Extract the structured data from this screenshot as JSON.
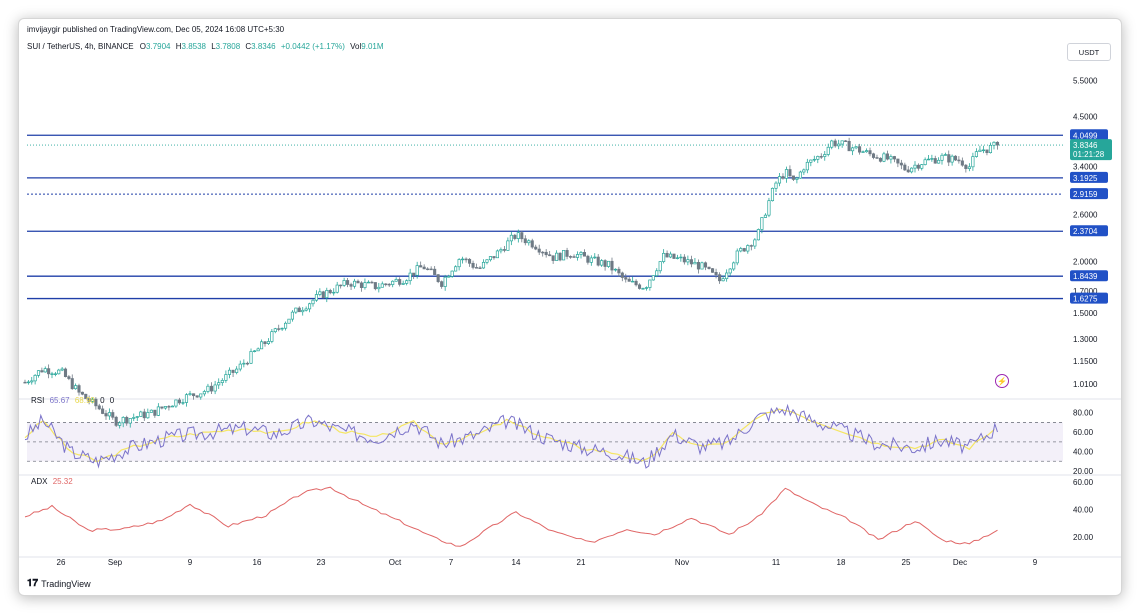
{
  "publish_line": "imvijaygir published on TradingView.com, Dec 05, 2024 16:08 UTC+5:30",
  "symbol": {
    "name": "SUI / TetherUS, 4h, BINANCE",
    "o_label": "O",
    "o": "3.7904",
    "h_label": "H",
    "h": "3.8538",
    "l_label": "L",
    "l": "3.7808",
    "c_label": "C",
    "c": "3.8346",
    "change": "+0.0442 (+1.17%)",
    "vol_label": "Vol",
    "vol": "9.01M"
  },
  "currency_button": "USDT",
  "logo_text": "TradingView",
  "colors": {
    "up": "#26a69a",
    "down": "#6f7a85",
    "level_line": "#1f3fa8",
    "tag_bg": "#2151c6",
    "last_price_bg": "#26a69a",
    "rsi_line": "#7b73c9",
    "rsi_ma": "#f5e663",
    "adx_line": "#e06666",
    "bolt": "#9c27b0"
  },
  "chart_data": [
    {
      "type": "candlestick",
      "title": "SUI / TetherUS, 4h, BINANCE",
      "x_tick_labels": [
        "26",
        "Sep",
        "9",
        "16",
        "23",
        "Oct",
        "7",
        "14",
        "21",
        "Nov",
        "11",
        "18",
        "25",
        "Dec",
        "9"
      ],
      "y_tick_labels": [
        "5.5000",
        "4.5000",
        "3.4000",
        "2.6000",
        "2.0000",
        "1.7000",
        "1.5000",
        "1.3000",
        "1.1500",
        "1.0100"
      ],
      "ylim": [
        0.95,
        6.2
      ],
      "scale": "log",
      "price_trace": [
        [
          "Aug 22",
          1.02
        ],
        [
          "Aug 24",
          1.1
        ],
        [
          "Aug 26",
          1.08
        ],
        [
          "Aug 28",
          0.96
        ],
        [
          "Sep 1",
          0.82
        ],
        [
          "Sep 5",
          0.86
        ],
        [
          "Sep 8",
          0.93
        ],
        [
          "Sep 11",
          0.98
        ],
        [
          "Sep 14",
          1.1
        ],
        [
          "Sep 17",
          1.28
        ],
        [
          "Sep 20",
          1.5
        ],
        [
          "Sep 23",
          1.66
        ],
        [
          "Sep 26",
          1.78
        ],
        [
          "Sep 29",
          1.74
        ],
        [
          "Oct 2",
          1.82
        ],
        [
          "Oct 4",
          1.95
        ],
        [
          "Oct 6",
          1.78
        ],
        [
          "Oct 8",
          2.05
        ],
        [
          "Oct 10",
          1.92
        ],
        [
          "Oct 12",
          2.1
        ],
        [
          "Oct 14",
          2.32
        ],
        [
          "Oct 16",
          2.2
        ],
        [
          "Oct 18",
          2.05
        ],
        [
          "Oct 20",
          2.1
        ],
        [
          "Oct 22",
          2.02
        ],
        [
          "Oct 24",
          1.96
        ],
        [
          "Oct 26",
          1.78
        ],
        [
          "Oct 28",
          1.74
        ],
        [
          "Oct 30",
          2.06
        ],
        [
          "Nov 1",
          2.02
        ],
        [
          "Nov 3",
          1.95
        ],
        [
          "Nov 5",
          1.8
        ],
        [
          "Nov 7",
          2.1
        ],
        [
          "Nov 9",
          2.3
        ],
        [
          "Nov 10",
          2.7
        ],
        [
          "Nov 11",
          3.1
        ],
        [
          "Nov 12",
          3.3
        ],
        [
          "Nov 13",
          3.1
        ],
        [
          "Nov 14",
          3.4
        ],
        [
          "Nov 16",
          3.65
        ],
        [
          "Nov 17",
          3.9
        ],
        [
          "Nov 19",
          3.8
        ],
        [
          "Nov 21",
          3.65
        ],
        [
          "Nov 23",
          3.55
        ],
        [
          "Nov 25",
          3.35
        ],
        [
          "Nov 27",
          3.5
        ],
        [
          "Nov 29",
          3.58
        ],
        [
          "Dec 1",
          3.52
        ],
        [
          "Dec 2",
          3.4
        ],
        [
          "Dec 3",
          3.72
        ],
        [
          "Dec 4",
          3.76
        ],
        [
          "Dec 5",
          3.8346
        ]
      ],
      "horizontal_levels": [
        {
          "value": 4.0499,
          "style": "solid",
          "label": "4.0499"
        },
        {
          "value": 3.1925,
          "style": "solid",
          "label": "3.1925"
        },
        {
          "value": 2.9159,
          "style": "dotted",
          "label": "2.9159"
        },
        {
          "value": 2.3704,
          "style": "solid",
          "label": "2.3704"
        },
        {
          "value": 1.8439,
          "style": "solid",
          "label": "1.8439"
        },
        {
          "value": 1.6275,
          "style": "solid",
          "label": "1.6275"
        }
      ],
      "last_price": {
        "value": 3.8346,
        "label": "3.8346",
        "countdown": "01:21:28"
      }
    },
    {
      "type": "line",
      "title": "RSI",
      "series": [
        {
          "name": "RSI",
          "last_value": "65.67"
        },
        {
          "name": "RSI MA",
          "last_value": "68.98"
        }
      ],
      "extra_values": [
        "0",
        "0"
      ],
      "y_tick_labels": [
        "80.00",
        "60.00",
        "40.00",
        "20.00"
      ],
      "ylim": [
        20,
        90
      ],
      "bands": [
        70,
        50,
        30
      ],
      "trace": [
        [
          "Aug 22",
          55
        ],
        [
          "Aug 24",
          72
        ],
        [
          "Aug 27",
          40
        ],
        [
          "Aug 30",
          30
        ],
        [
          "Sep 3",
          45
        ],
        [
          "Sep 7",
          55
        ],
        [
          "Sep 11",
          60
        ],
        [
          "Sep 15",
          64
        ],
        [
          "Sep 18",
          58
        ],
        [
          "Sep 22",
          72
        ],
        [
          "Sep 25",
          62
        ],
        [
          "Sep 29",
          54
        ],
        [
          "Oct 3",
          70
        ],
        [
          "Oct 6",
          48
        ],
        [
          "Oct 10",
          58
        ],
        [
          "Oct 13",
          72
        ],
        [
          "Oct 17",
          55
        ],
        [
          "Oct 21",
          44
        ],
        [
          "Oct 25",
          38
        ],
        [
          "Oct 28",
          28
        ],
        [
          "Oct 31",
          58
        ],
        [
          "Nov 3",
          45
        ],
        [
          "Nov 6",
          50
        ],
        [
          "Nov 9",
          75
        ],
        [
          "Nov 12",
          84
        ],
        [
          "Nov 15",
          72
        ],
        [
          "Nov 18",
          62
        ],
        [
          "Nov 22",
          48
        ],
        [
          "Nov 26",
          44
        ],
        [
          "Nov 29",
          52
        ],
        [
          "Dec 2",
          44
        ],
        [
          "Dec 5",
          65.67
        ]
      ]
    },
    {
      "type": "line",
      "title": "ADX",
      "series": [
        {
          "name": "ADX",
          "last_value": "25.32"
        }
      ],
      "y_tick_labels": [
        "60.00",
        "40.00",
        "20.00"
      ],
      "ylim": [
        10,
        62
      ],
      "trace": [
        [
          "Aug 22",
          35
        ],
        [
          "Aug 25",
          42
        ],
        [
          "Aug 29",
          25
        ],
        [
          "Sep 2",
          26
        ],
        [
          "Sep 6",
          32
        ],
        [
          "Sep 9",
          44
        ],
        [
          "Sep 13",
          28
        ],
        [
          "Sep 17",
          36
        ],
        [
          "Sep 21",
          52
        ],
        [
          "Sep 24",
          56
        ],
        [
          "Sep 28",
          42
        ],
        [
          "Oct 2",
          30
        ],
        [
          "Oct 5",
          20
        ],
        [
          "Oct 8",
          13
        ],
        [
          "Oct 11",
          26
        ],
        [
          "Oct 14",
          38
        ],
        [
          "Oct 18",
          24
        ],
        [
          "Oct 22",
          16
        ],
        [
          "Oct 26",
          26
        ],
        [
          "Oct 29",
          22
        ],
        [
          "Nov 2",
          34
        ],
        [
          "Nov 6",
          22
        ],
        [
          "Nov 9",
          34
        ],
        [
          "Nov 12",
          55
        ],
        [
          "Nov 15",
          44
        ],
        [
          "Nov 19",
          32
        ],
        [
          "Nov 22",
          18
        ],
        [
          "Nov 26",
          32
        ],
        [
          "Nov 29",
          18
        ],
        [
          "Dec 2",
          15
        ],
        [
          "Dec 5",
          25.32
        ]
      ]
    }
  ]
}
